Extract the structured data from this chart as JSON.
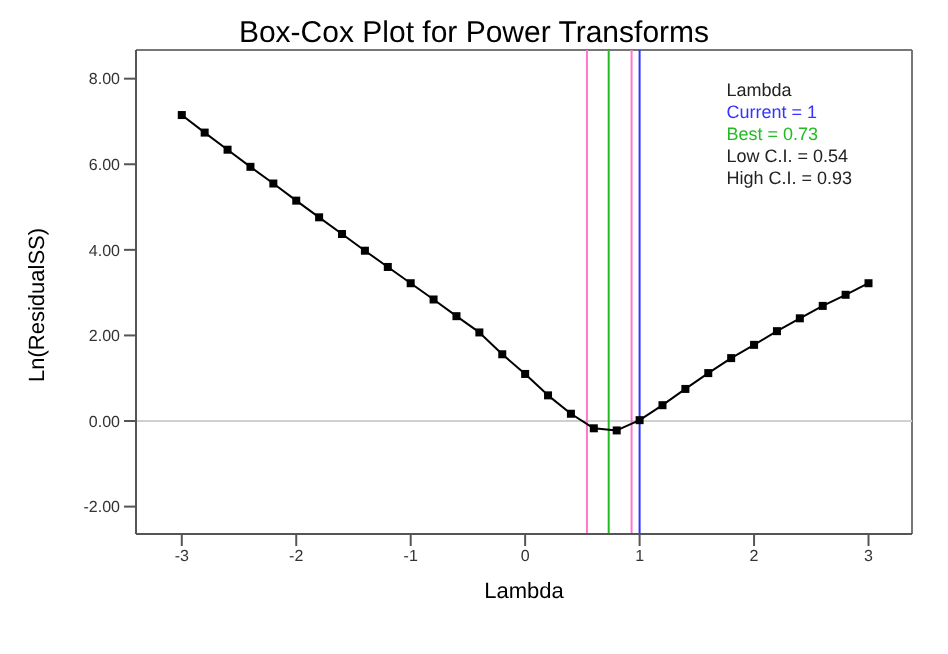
{
  "chart_data": {
    "type": "line",
    "title": "Box-Cox Plot for Power Transforms",
    "xlabel": "Lambda",
    "ylabel": "Ln(ResidualSS)",
    "legend_title": "Lambda",
    "x": [
      -3,
      -2.8,
      -2.6,
      -2.4,
      -2.2,
      -2,
      -1.8,
      -1.6,
      -1.4,
      -1.2,
      -1,
      -0.8,
      -0.6,
      -0.4,
      -0.2,
      0,
      0.2,
      0.4,
      0.6,
      0.8,
      1,
      1.2,
      1.4,
      1.6,
      1.8,
      2,
      2.2,
      2.4,
      2.6,
      2.8,
      3
    ],
    "series": [
      {
        "color": "#000000",
        "values": [
          7.15,
          6.74,
          6.34,
          5.94,
          5.55,
          5.15,
          4.76,
          4.37,
          3.98,
          3.6,
          3.22,
          2.84,
          2.45,
          2.07,
          1.56,
          1.1,
          0.6,
          0.17,
          -0.17,
          -0.22,
          0.02,
          0.37,
          0.75,
          1.12,
          1.47,
          1.78,
          2.1,
          2.4,
          2.69,
          2.95,
          3.22
        ]
      }
    ],
    "marker": "square",
    "line_style": "solid",
    "legend": "top right",
    "annotations": [
      "Low C.I. = 0.54",
      "High C.I. = 0.93"
    ],
    "xlim": [
      -3.4,
      3.38
    ],
    "xticks": [
      -3,
      -2,
      -1,
      0,
      1,
      2,
      3
    ],
    "ylim": [
      -2.64,
      8.67
    ],
    "yticks": [
      {
        "value": -2,
        "label": "-2.00"
      },
      {
        "value": 0,
        "label": "0.00"
      },
      {
        "value": 2,
        "label": "2.00"
      },
      {
        "value": 4,
        "label": "4.00"
      },
      {
        "value": 6,
        "label": "6.00"
      },
      {
        "value": 8,
        "label": "8.00"
      }
    ],
    "ref_lines": [
      {
        "axis": "y",
        "value": 0,
        "label": null,
        "color": "#d0d0d0"
      },
      {
        "axis": "x",
        "value": 1,
        "label": "Current = 1",
        "color": "#3333ff"
      },
      {
        "axis": "x",
        "value": 0.73,
        "label": "Best = 0.73",
        "color": "#22bb22"
      },
      {
        "axis": "x",
        "value": 0.54,
        "label": null,
        "color": "#ff77cc"
      },
      {
        "axis": "x",
        "value": 0.93,
        "label": null,
        "color": "#ff77cc"
      }
    ]
  }
}
